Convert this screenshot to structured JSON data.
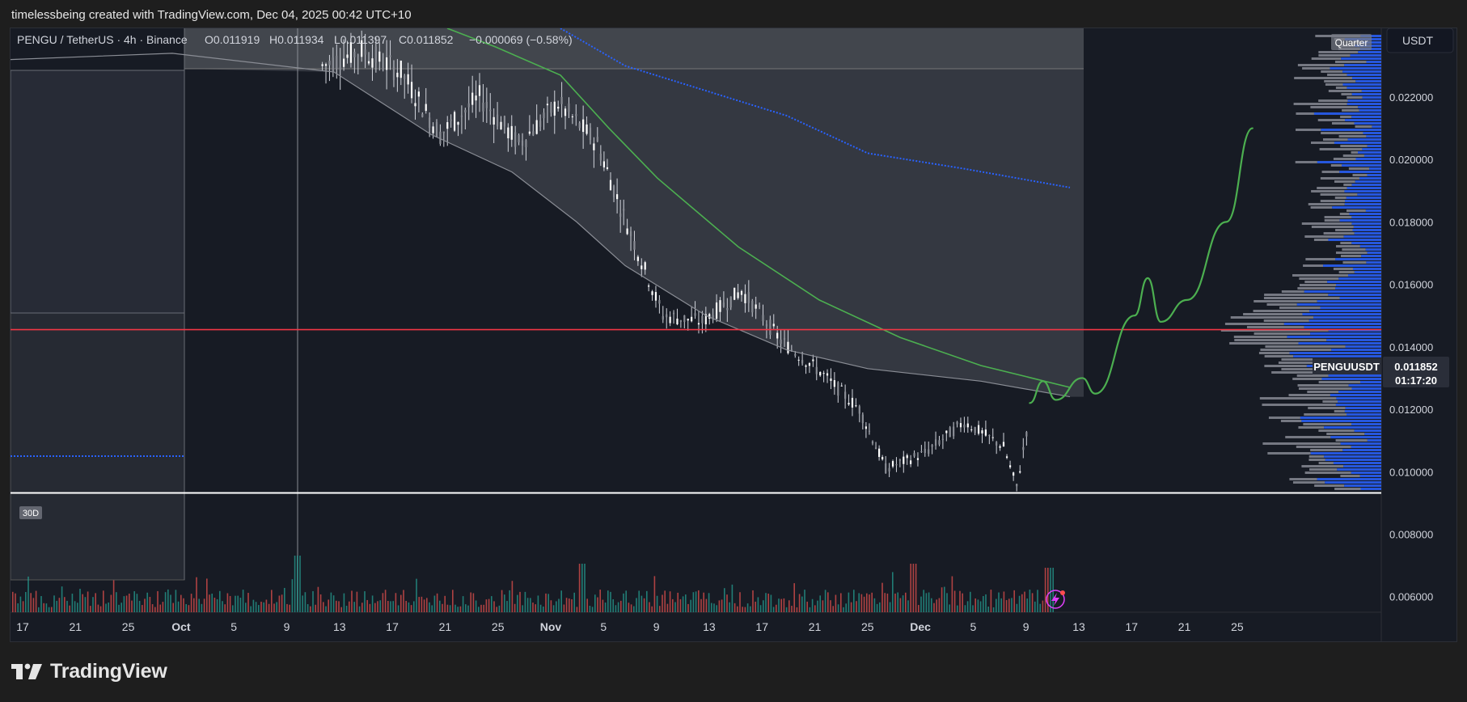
{
  "header": {
    "attribution": "timelessbeing created with TradingView.com, Dec 04, 2025 00:42 UTC+10"
  },
  "legend": {
    "symbol_line": "PENGU / TetherUS · 4h · Binance",
    "open": "O0.011919",
    "high": "H0.011934",
    "low": "L0.011397",
    "close": "C0.011852",
    "change": "−0.000069 (−0.58%)"
  },
  "buttons": {
    "quarter": "Quarter",
    "currency": "USDT",
    "range_30d": "30D"
  },
  "last_price": {
    "symbol": "PENGUUSDT",
    "price": "0.011852",
    "countdown": "01:17:20"
  },
  "footer": {
    "brand": "TradingView"
  },
  "colors": {
    "background": "#171b24",
    "candle": "#d1d4dc",
    "red_line": "#f23645",
    "white_line": "#ffffff",
    "green_line": "#4caf50",
    "blue_dotted": "#2962ff",
    "volume_up": "#26a69a",
    "volume_down": "#ef5350",
    "profile_blue": "#2962ff",
    "profile_gray": "#9598a1"
  },
  "chart_data": {
    "type": "candlestick",
    "symbol": "PENGU / TetherUS",
    "interval": "4h",
    "exchange": "Binance",
    "price_axis": {
      "min": 0.0055,
      "max": 0.0242,
      "ticks": [
        "0.022000",
        "0.020000",
        "0.018000",
        "0.016000",
        "0.014000",
        "0.012000",
        "0.010000",
        "0.008000",
        "0.006000"
      ]
    },
    "time_axis": {
      "labels": [
        "17",
        "21",
        "25",
        "Oct",
        "5",
        "9",
        "13",
        "17",
        "21",
        "25",
        "Nov",
        "5",
        "9",
        "13",
        "17",
        "21",
        "25",
        "Dec",
        "5",
        "9",
        "13",
        "17",
        "21",
        "25"
      ]
    },
    "horizontal_levels": [
      {
        "price": 0.01455,
        "color": "red"
      },
      {
        "price": 0.00932,
        "color": "white"
      }
    ],
    "price_path": [
      {
        "date": "2025-10-10",
        "price": 0.023
      },
      {
        "date": "2025-10-13",
        "price": 0.0235
      },
      {
        "date": "2025-10-16",
        "price": 0.0228
      },
      {
        "date": "2025-10-19",
        "price": 0.0208
      },
      {
        "date": "2025-10-22",
        "price": 0.022
      },
      {
        "date": "2025-10-25",
        "price": 0.0205
      },
      {
        "date": "2025-10-28",
        "price": 0.0218
      },
      {
        "date": "2025-10-31",
        "price": 0.0205
      },
      {
        "date": "2025-11-02",
        "price": 0.0182
      },
      {
        "date": "2025-11-05",
        "price": 0.015
      },
      {
        "date": "2025-11-08",
        "price": 0.0148
      },
      {
        "date": "2025-11-11",
        "price": 0.0158
      },
      {
        "date": "2025-11-14",
        "price": 0.0142
      },
      {
        "date": "2025-11-17",
        "price": 0.0132
      },
      {
        "date": "2025-11-20",
        "price": 0.012
      },
      {
        "date": "2025-11-22",
        "price": 0.0101
      },
      {
        "date": "2025-11-25",
        "price": 0.0106
      },
      {
        "date": "2025-11-28",
        "price": 0.0116
      },
      {
        "date": "2025-12-01",
        "price": 0.0108
      },
      {
        "date": "2025-12-02",
        "price": 0.0095
      },
      {
        "date": "2025-12-03",
        "price": 0.0119
      }
    ],
    "projection_path": [
      {
        "date": "2025-12-03",
        "price": 0.0122
      },
      {
        "date": "2025-12-04",
        "price": 0.0129
      },
      {
        "date": "2025-12-05",
        "price": 0.0123
      },
      {
        "date": "2025-12-07",
        "price": 0.013
      },
      {
        "date": "2025-12-08",
        "price": 0.0125
      },
      {
        "date": "2025-12-11",
        "price": 0.015
      },
      {
        "date": "2025-12-12",
        "price": 0.0162
      },
      {
        "date": "2025-12-13",
        "price": 0.0148
      },
      {
        "date": "2025-12-15",
        "price": 0.0155
      },
      {
        "date": "2025-12-18",
        "price": 0.018
      },
      {
        "date": "2025-12-20",
        "price": 0.021
      }
    ],
    "last_price": 0.011852
  }
}
